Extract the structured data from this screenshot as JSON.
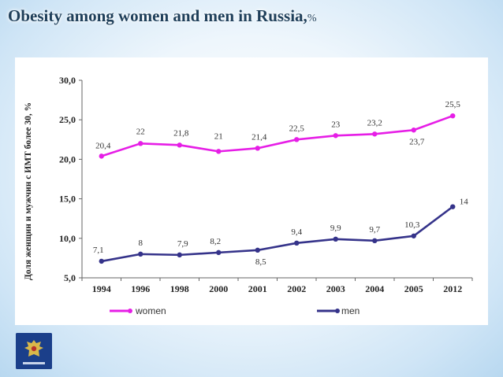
{
  "slide": {
    "title": "Obesity among women and men in Russia,",
    "title_unit": "%"
  },
  "chart_data": {
    "type": "line",
    "title": "Obesity among women and men in Russia, %",
    "ylabel": "Доля женщин и мужчин с ИМТ более 30, %",
    "xlabel": "",
    "categories": [
      "1994",
      "1996",
      "1998",
      "2000",
      "2001",
      "2002",
      "2003",
      "2004",
      "2005",
      "2012"
    ],
    "ylim": [
      5,
      30
    ],
    "y_ticks": [
      "5,0",
      "10,0",
      "15,0",
      "20,0",
      "25,0",
      "30,0"
    ],
    "y_tick_values": [
      5,
      10,
      15,
      20,
      25,
      30
    ],
    "grid": false,
    "legend_position": "bottom",
    "series": [
      {
        "name": "women",
        "color": "#e61ee6",
        "values": [
          20.4,
          22,
          21.8,
          21,
          21.4,
          22.5,
          23,
          23.2,
          23.7,
          25.5
        ],
        "labels": [
          "20,4",
          "22",
          "21,8",
          "21",
          "21,4",
          "22,5",
          "23",
          "23,2",
          "23,7",
          "25,5"
        ]
      },
      {
        "name": "men",
        "color": "#35338a",
        "values": [
          7.1,
          8,
          7.9,
          8.2,
          8.5,
          9.4,
          9.9,
          9.7,
          10.3,
          14
        ],
        "labels": [
          "7,1",
          "8",
          "7,9",
          "8,2",
          "8,5",
          "9,4",
          "9,9",
          "9,7",
          "10,3",
          "14"
        ]
      }
    ]
  }
}
